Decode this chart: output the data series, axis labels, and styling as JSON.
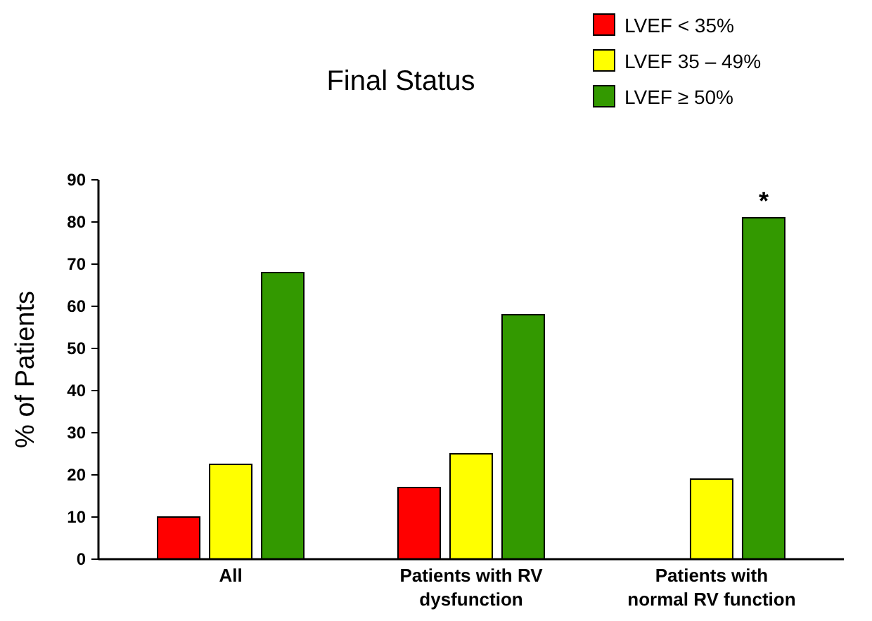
{
  "chart_data": {
    "type": "bar",
    "title": "Final Status",
    "ylabel": "% of Patients",
    "categories": [
      "All",
      "Patients with RV dysfunction",
      "Patients with normal RV function"
    ],
    "series": [
      {
        "name": "LVEF < 35%",
        "color": "#ff0000",
        "values": [
          10,
          17,
          null
        ]
      },
      {
        "name": "LVEF 35 – 49%",
        "color": "#ffff00",
        "values": [
          22.5,
          25,
          19
        ]
      },
      {
        "name": "LVEF ≥  50%",
        "color": "#339900",
        "values": [
          68,
          58,
          81
        ]
      }
    ],
    "ylim": [
      0,
      90
    ],
    "yticks": [
      0,
      10,
      20,
      30,
      40,
      50,
      60,
      70,
      80,
      90
    ],
    "grid": false,
    "legend": "top right",
    "annotations": [
      "*"
    ]
  }
}
